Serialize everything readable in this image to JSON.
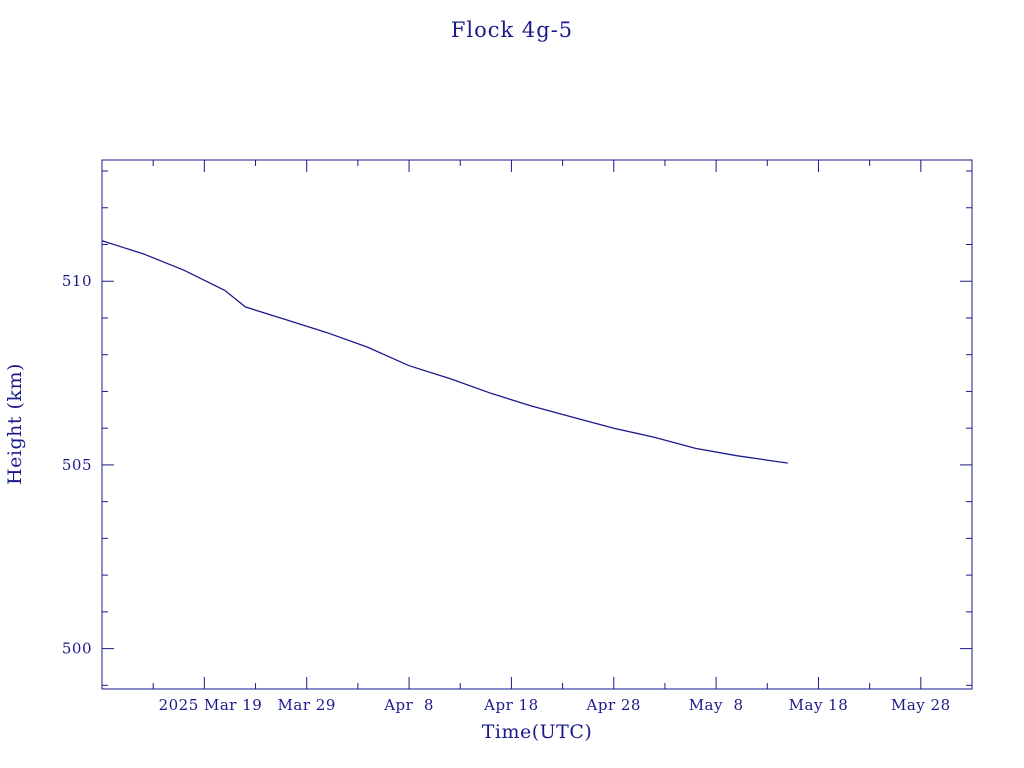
{
  "chart_data": {
    "type": "line",
    "title": "Flock 4g-5",
    "xlabel": "Time(UTC)",
    "ylabel": "Height (km)",
    "x_tick_labels": [
      "2025 Mar 19",
      "Mar 29",
      "Apr  8",
      "Apr 18",
      "Apr 28",
      "May  8",
      "May 18",
      "May 28"
    ],
    "x_tick_dates": [
      "2025-03-19",
      "2025-03-29",
      "2025-04-08",
      "2025-04-18",
      "2025-04-28",
      "2025-05-08",
      "2025-05-18",
      "2025-05-28"
    ],
    "y_ticks": [
      500,
      505,
      510
    ],
    "xlim": [
      "2025-03-09",
      "2025-06-02"
    ],
    "ylim": [
      498.9,
      513.3
    ],
    "grid": false,
    "series": [
      {
        "x": [
          "2025-03-09",
          "2025-03-13",
          "2025-03-17",
          "2025-03-21",
          "2025-03-23",
          "2025-03-27",
          "2025-03-31",
          "2025-04-04",
          "2025-04-08",
          "2025-04-12",
          "2025-04-16",
          "2025-04-20",
          "2025-04-24",
          "2025-04-28",
          "2025-05-02",
          "2025-05-06",
          "2025-05-10",
          "2025-05-15"
        ],
        "y": [
          511.1,
          510.75,
          510.3,
          509.75,
          509.3,
          508.95,
          508.6,
          508.2,
          507.7,
          507.35,
          506.95,
          506.6,
          506.3,
          506.0,
          505.75,
          505.45,
          505.25,
          505.05
        ]
      }
    ]
  }
}
